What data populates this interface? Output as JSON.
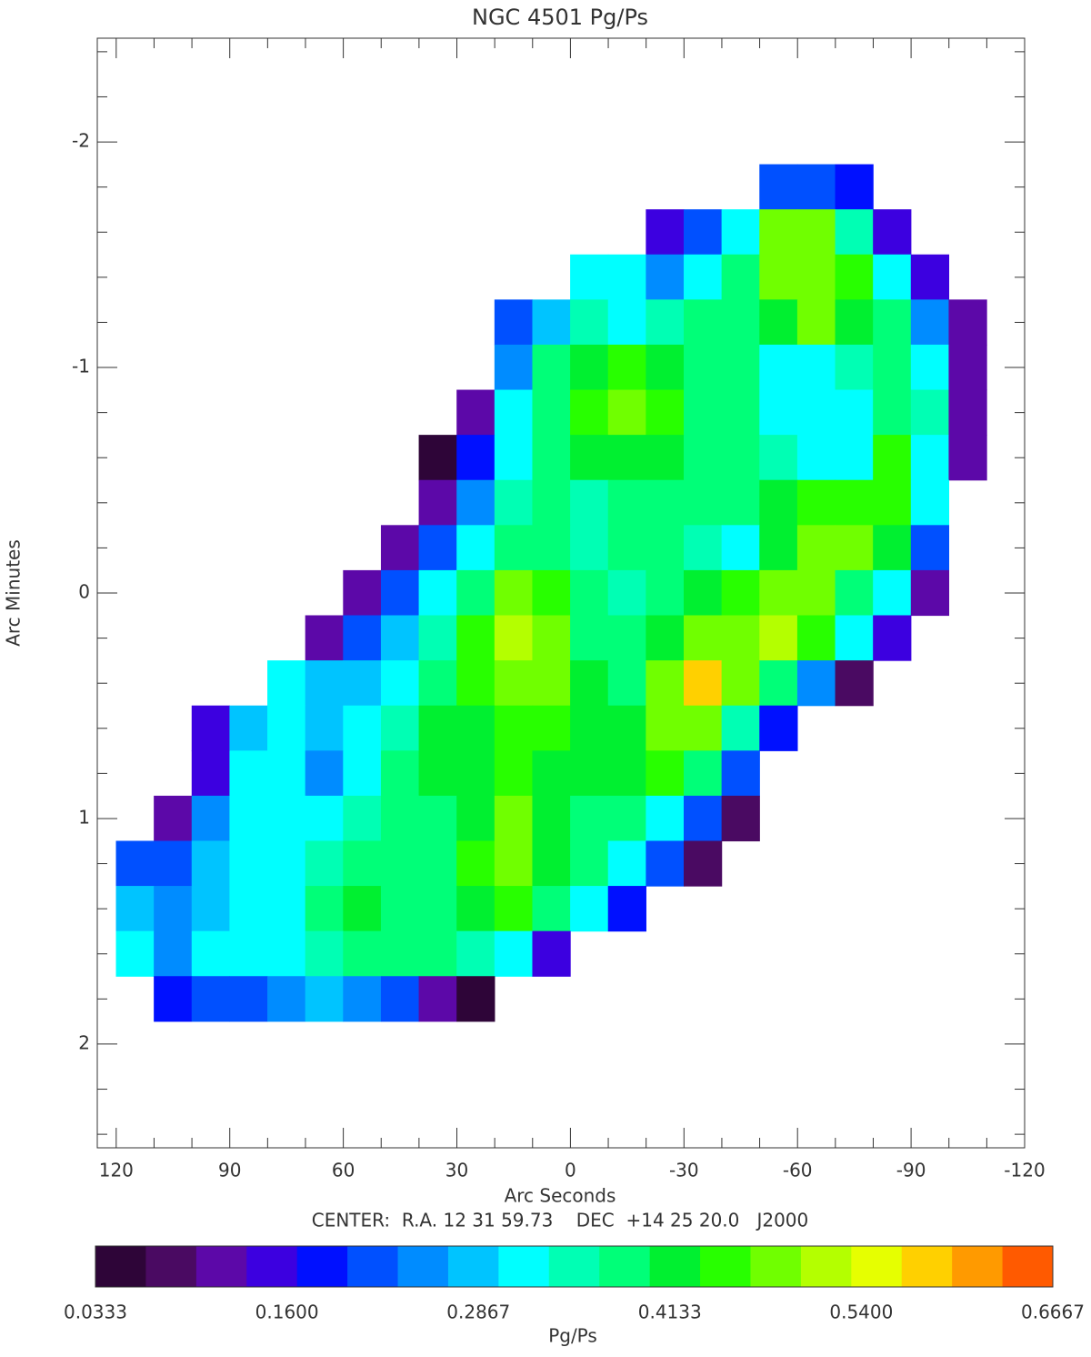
{
  "chart_data": {
    "type": "contour",
    "title": "NGC 4501 Pg/Ps",
    "xlabel": "Arc Seconds",
    "ylabel": "Arc Minutes",
    "annotation": "CENTER:  R.A. 12 31 59.73    DEC  +14 25 20.0   J2000",
    "xlim": [
      125,
      -120
    ],
    "ylim": [
      -2.46,
      2.46
    ],
    "xticks": [
      120,
      90,
      60,
      30,
      0,
      -30,
      -60,
      -90,
      -120
    ],
    "yticks": [
      -2,
      -1,
      0,
      1,
      2
    ],
    "field": {
      "x": [
        115,
        105,
        95,
        85,
        75,
        65,
        55,
        45,
        35,
        25,
        15,
        5,
        -5,
        -15,
        -25,
        -35,
        -45,
        -55,
        -65,
        -75,
        -85,
        -95,
        -105
      ],
      "y": [
        -1.8,
        -1.6,
        -1.4,
        -1.2,
        -1.0,
        -0.8,
        -0.6,
        -0.4,
        -0.2,
        0.0,
        0.2,
        0.4,
        0.6,
        0.8,
        1.0,
        1.2,
        1.4,
        1.6,
        1.8
      ],
      "values": [
        [
          null,
          null,
          null,
          null,
          null,
          null,
          null,
          null,
          null,
          null,
          null,
          null,
          null,
          null,
          null,
          null,
          null,
          0.2,
          0.22,
          0.18,
          null,
          null,
          null
        ],
        [
          null,
          null,
          null,
          null,
          null,
          null,
          null,
          null,
          null,
          null,
          null,
          null,
          null,
          null,
          0.15,
          0.22,
          0.3,
          0.48,
          0.5,
          0.35,
          0.15,
          null,
          null
        ],
        [
          null,
          null,
          null,
          null,
          null,
          null,
          null,
          null,
          null,
          null,
          null,
          null,
          0.3,
          0.3,
          0.25,
          0.32,
          0.38,
          0.48,
          0.5,
          0.45,
          0.33,
          0.15,
          null
        ],
        [
          null,
          null,
          null,
          null,
          null,
          null,
          null,
          null,
          null,
          null,
          0.2,
          0.28,
          0.36,
          0.33,
          0.35,
          0.38,
          0.4,
          0.42,
          0.48,
          0.42,
          0.38,
          0.25,
          0.12
        ],
        [
          null,
          null,
          null,
          null,
          null,
          null,
          null,
          null,
          null,
          null,
          0.25,
          0.38,
          0.42,
          0.45,
          0.42,
          0.37,
          0.38,
          0.3,
          0.32,
          0.36,
          0.4,
          0.3,
          0.12
        ],
        [
          null,
          null,
          null,
          null,
          null,
          null,
          null,
          null,
          null,
          0.1,
          0.3,
          0.4,
          0.45,
          0.5,
          0.46,
          0.38,
          0.37,
          0.32,
          0.33,
          0.3,
          0.4,
          0.35,
          0.12
        ],
        [
          null,
          null,
          null,
          null,
          null,
          null,
          null,
          null,
          0.05,
          0.18,
          0.32,
          0.38,
          0.42,
          0.42,
          0.42,
          0.4,
          0.4,
          0.35,
          0.33,
          0.3,
          0.45,
          0.33,
          0.1
        ],
        [
          null,
          null,
          null,
          null,
          null,
          null,
          null,
          null,
          0.12,
          0.25,
          0.35,
          0.38,
          0.35,
          0.38,
          0.4,
          0.4,
          0.38,
          0.42,
          0.45,
          0.45,
          0.45,
          0.3,
          null
        ],
        [
          null,
          null,
          null,
          null,
          null,
          null,
          null,
          0.1,
          0.2,
          0.33,
          0.4,
          0.4,
          0.35,
          0.38,
          0.4,
          0.36,
          0.3,
          0.42,
          0.48,
          0.47,
          0.42,
          0.22,
          null
        ],
        [
          null,
          null,
          null,
          null,
          null,
          null,
          0.12,
          0.2,
          0.3,
          0.4,
          0.47,
          0.45,
          0.38,
          0.36,
          0.38,
          0.42,
          0.45,
          0.48,
          0.48,
          0.4,
          0.3,
          0.1,
          null
        ],
        [
          null,
          null,
          null,
          null,
          null,
          0.1,
          0.2,
          0.28,
          0.36,
          0.45,
          0.52,
          0.47,
          0.4,
          0.38,
          0.42,
          0.5,
          0.5,
          0.52,
          0.45,
          0.33,
          0.15,
          null,
          null
        ],
        [
          null,
          null,
          null,
          null,
          0.3,
          0.27,
          0.28,
          0.33,
          0.38,
          0.45,
          0.5,
          0.47,
          0.42,
          0.4,
          0.48,
          0.6,
          0.5,
          0.4,
          0.25,
          0.08,
          null,
          null,
          null
        ],
        [
          null,
          null,
          0.15,
          0.28,
          0.33,
          0.28,
          0.3,
          0.35,
          0.42,
          0.43,
          0.45,
          0.45,
          0.42,
          0.42,
          0.5,
          0.5,
          0.35,
          0.18,
          null,
          null,
          null,
          null,
          null
        ],
        [
          null,
          null,
          0.15,
          0.3,
          0.3,
          0.25,
          0.33,
          0.38,
          0.42,
          0.43,
          0.45,
          0.43,
          0.42,
          0.42,
          0.45,
          0.38,
          0.2,
          null,
          null,
          null,
          null,
          null,
          null
        ],
        [
          null,
          0.1,
          0.25,
          0.32,
          0.3,
          0.32,
          0.35,
          0.38,
          0.38,
          0.43,
          0.47,
          0.43,
          0.4,
          0.38,
          0.33,
          0.22,
          0.07,
          null,
          null,
          null,
          null,
          null,
          null
        ],
        [
          0.2,
          0.22,
          0.28,
          0.32,
          0.33,
          0.35,
          0.37,
          0.38,
          0.4,
          0.45,
          0.48,
          0.42,
          0.38,
          0.33,
          0.2,
          0.07,
          null,
          null,
          null,
          null,
          null,
          null,
          null
        ],
        [
          0.27,
          0.25,
          0.28,
          0.3,
          0.33,
          0.38,
          0.42,
          0.4,
          0.38,
          0.43,
          0.45,
          0.38,
          0.3,
          0.18,
          null,
          null,
          null,
          null,
          null,
          null,
          null,
          null,
          null
        ],
        [
          0.33,
          0.25,
          0.3,
          0.3,
          0.32,
          0.35,
          0.37,
          0.38,
          0.38,
          0.36,
          0.3,
          0.15,
          null,
          null,
          null,
          null,
          null,
          null,
          null,
          null,
          null,
          null,
          null
        ],
        [
          null,
          0.17,
          0.2,
          0.22,
          0.25,
          0.28,
          0.25,
          0.2,
          0.12,
          0.05,
          null,
          null,
          null,
          null,
          null,
          null,
          null,
          null,
          null,
          null,
          null,
          null,
          null
        ]
      ]
    },
    "colorbar": {
      "label": "Pg/Ps",
      "clim": [
        0.0333,
        0.6667
      ],
      "ticks": [
        0.0333,
        {
          "value": 0.16,
          "label": "0.1600"
        },
        0.2867,
        0.4133,
        {
          "value": 0.54,
          "label": "0.5400"
        },
        0.6667
      ],
      "colors": [
        "#2e0538",
        "#4a0a62",
        "#5c08a8",
        "#3c00e0",
        "#0010ff",
        "#0050ff",
        "#008cff",
        "#00c4ff",
        "#00ffff",
        "#00ffb4",
        "#00ff78",
        "#00f030",
        "#28ff00",
        "#70ff00",
        "#b4ff00",
        "#e6ff00",
        "#ffd000",
        "#ff9a00",
        "#ff5a00"
      ]
    }
  }
}
